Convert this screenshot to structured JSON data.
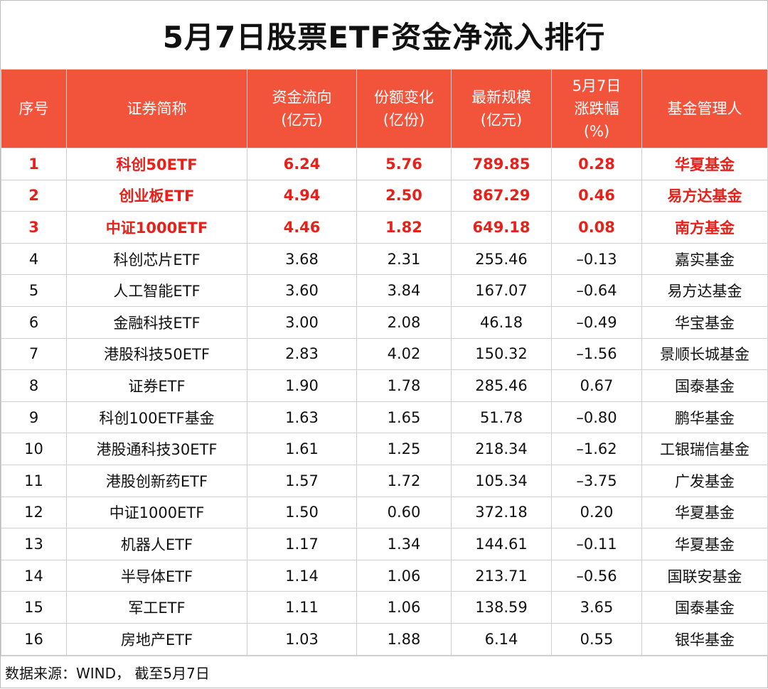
{
  "title": "5月7日股票ETF资金净流入排行",
  "headers": [
    {
      "lines": [
        "序号"
      ]
    },
    {
      "lines": [
        "证券简称"
      ]
    },
    {
      "lines": [
        "资金流向",
        "(亿元)"
      ]
    },
    {
      "lines": [
        "份额变化",
        "(亿份)"
      ]
    },
    {
      "lines": [
        "最新规模",
        "(亿元)"
      ]
    },
    {
      "lines": [
        "5月7日",
        "涨跌幅",
        "(%)"
      ]
    },
    {
      "lines": [
        "基金管理人"
      ]
    }
  ],
  "rows": [
    {
      "rank": "1",
      "name": "科创50ETF",
      "flow": "6.24",
      "share": "5.76",
      "scale": "789.85",
      "chg": "0.28",
      "manager": "华夏基金",
      "top": true
    },
    {
      "rank": "2",
      "name": "创业板ETF",
      "flow": "4.94",
      "share": "2.50",
      "scale": "867.29",
      "chg": "0.46",
      "manager": "易方达基金",
      "top": true
    },
    {
      "rank": "3",
      "name": "中证1000ETF",
      "flow": "4.46",
      "share": "1.82",
      "scale": "649.18",
      "chg": "0.08",
      "manager": "南方基金",
      "top": true
    },
    {
      "rank": "4",
      "name": "科创芯片ETF",
      "flow": "3.68",
      "share": "2.31",
      "scale": "255.46",
      "chg": "–0.13",
      "manager": "嘉实基金",
      "top": false
    },
    {
      "rank": "5",
      "name": "人工智能ETF",
      "flow": "3.60",
      "share": "3.84",
      "scale": "167.07",
      "chg": "–0.64",
      "manager": "易方达基金",
      "top": false
    },
    {
      "rank": "6",
      "name": "金融科技ETF",
      "flow": "3.00",
      "share": "2.08",
      "scale": "46.18",
      "chg": "–0.49",
      "manager": "华宝基金",
      "top": false
    },
    {
      "rank": "7",
      "name": "港股科技50ETF",
      "flow": "2.83",
      "share": "4.02",
      "scale": "150.32",
      "chg": "–1.56",
      "manager": "景顺长城基金",
      "top": false
    },
    {
      "rank": "8",
      "name": "证券ETF",
      "flow": "1.90",
      "share": "1.78",
      "scale": "285.46",
      "chg": "0.67",
      "manager": "国泰基金",
      "top": false
    },
    {
      "rank": "9",
      "name": "科创100ETF基金",
      "flow": "1.63",
      "share": "1.65",
      "scale": "51.78",
      "chg": "–0.80",
      "manager": "鹏华基金",
      "top": false
    },
    {
      "rank": "10",
      "name": "港股通科技30ETF",
      "flow": "1.61",
      "share": "1.25",
      "scale": "218.34",
      "chg": "–1.62",
      "manager": "工银瑞信基金",
      "top": false
    },
    {
      "rank": "11",
      "name": "港股创新药ETF",
      "flow": "1.57",
      "share": "1.72",
      "scale": "105.34",
      "chg": "–3.75",
      "manager": "广发基金",
      "top": false
    },
    {
      "rank": "12",
      "name": "中证1000ETF",
      "flow": "1.50",
      "share": "0.60",
      "scale": "372.18",
      "chg": "0.20",
      "manager": "华夏基金",
      "top": false
    },
    {
      "rank": "13",
      "name": "机器人ETF",
      "flow": "1.17",
      "share": "1.34",
      "scale": "144.61",
      "chg": "–0.11",
      "manager": "华夏基金",
      "top": false
    },
    {
      "rank": "14",
      "name": "半导体ETF",
      "flow": "1.14",
      "share": "1.06",
      "scale": "213.71",
      "chg": "–0.56",
      "manager": "国联安基金",
      "top": false
    },
    {
      "rank": "15",
      "name": "军工ETF",
      "flow": "1.11",
      "share": "1.06",
      "scale": "138.59",
      "chg": "3.65",
      "manager": "国泰基金",
      "top": false
    },
    {
      "rank": "16",
      "name": "房地产ETF",
      "flow": "1.03",
      "share": "1.88",
      "scale": "6.14",
      "chg": "0.55",
      "manager": "银华基金",
      "top": false
    }
  ],
  "source": "数据来源：WIND， 截至5月7日",
  "colors": {
    "header_bg": "#f2533b",
    "header_text": "#ffffff",
    "highlight_text": "#e8201a",
    "grid_line": "#cfcfcf"
  }
}
